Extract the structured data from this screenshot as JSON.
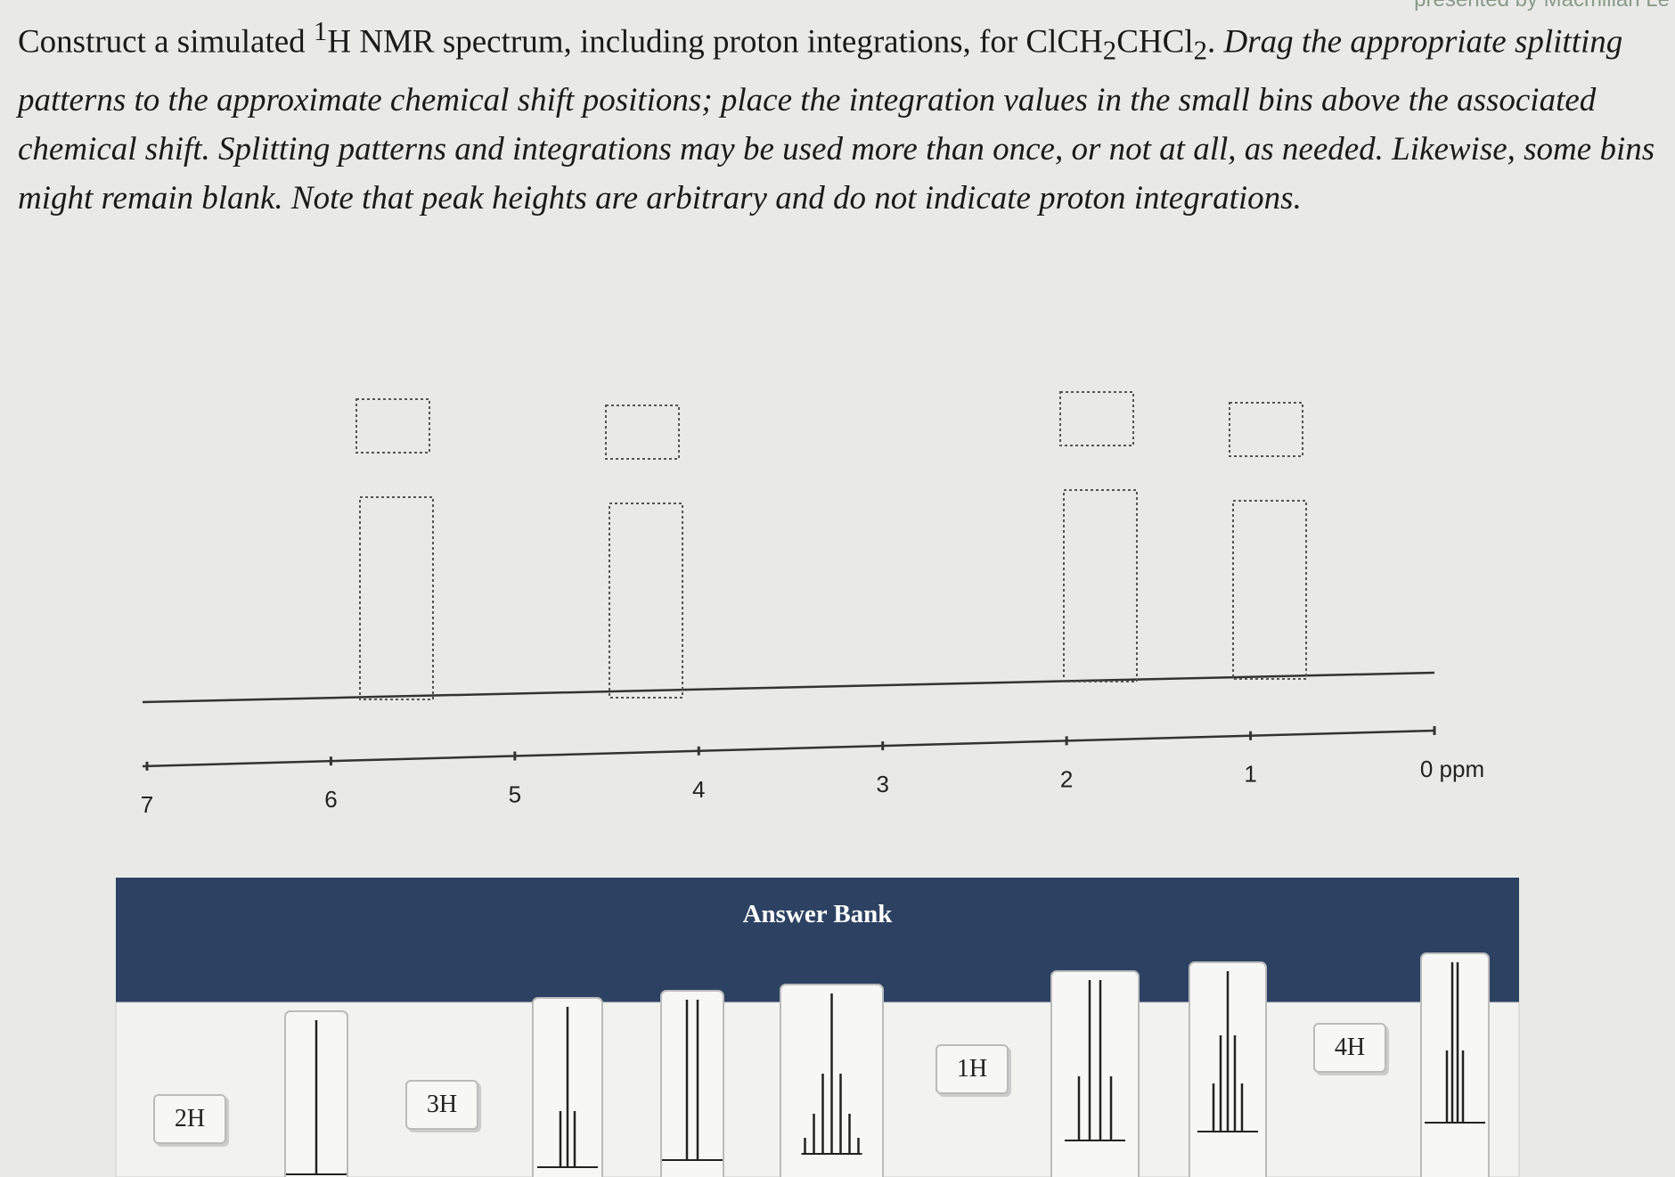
{
  "header": {
    "brand": "presented by Macmillan Le"
  },
  "question": {
    "parts": [
      "Construct a simulated ",
      "1",
      "H NMR spectrum, including proton integrations, for ClCH",
      "2",
      "CHCl",
      "2",
      ". ",
      "Drag the appropriate splitting patterns to the approximate chemical shift positions; place the integration values in the small bins above the associated chemical shift. Splitting patterns and integrations may be used more than once, or not at all, as needed. Likewise, some bins might remain blank. Note that peak heights are arbitrary and do not indicate proton integrations."
    ]
  },
  "axis": {
    "ticks": [
      "7",
      "6",
      "5",
      "4",
      "3",
      "2",
      "1",
      "0 ppm"
    ]
  },
  "answer_bank": {
    "title": "Answer Bank",
    "integrations": [
      "2H",
      "3H",
      "1H",
      "4H"
    ]
  }
}
